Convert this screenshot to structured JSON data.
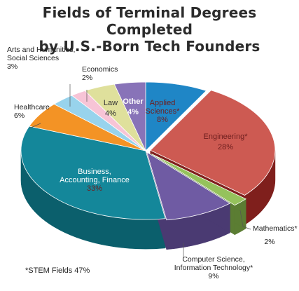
{
  "chart_data": {
    "type": "pie",
    "style": "3d-exploded",
    "title": [
      "Fields of Terminal Degrees Completed",
      "by U.S.-Born Tech Founders"
    ],
    "slices": [
      {
        "label_lines": [
          "Applied",
          "Sciences*"
        ],
        "pct_label": "8%",
        "value": 8,
        "color": "#1f86c6",
        "side": "#155e8c"
      },
      {
        "label_lines": [
          "Engineering*"
        ],
        "pct_label": "28%",
        "value": 28,
        "color": "#cd5a52",
        "side": "#7f1f1c"
      },
      {
        "label_lines": [
          "Mathematics*"
        ],
        "pct_label": "2%",
        "value": 2,
        "color": "#95c25c",
        "side": "#5b7d33"
      },
      {
        "label_lines": [
          "Computer Science,",
          "Information Technology*"
        ],
        "pct_label": "9%",
        "value": 9,
        "color": "#6f5ba3",
        "side": "#4a3a72"
      },
      {
        "label_lines": [
          "Business,",
          "Accounting, Finance"
        ],
        "pct_label": "33%",
        "value": 33,
        "color": "#14879a",
        "side": "#0b5f6c"
      },
      {
        "label_lines": [
          "Healthcare"
        ],
        "pct_label": "6%",
        "value": 6,
        "color": "#f39325",
        "side": "#b2660f"
      },
      {
        "label_lines": [
          "Arts and Humanities,",
          "Social Sciences"
        ],
        "pct_label": "3%",
        "value": 3,
        "color": "#98d3ec",
        "side": "#5f9db8"
      },
      {
        "label_lines": [
          "Economics"
        ],
        "pct_label": "2%",
        "value": 2,
        "color": "#f7c4d6",
        "side": "#c48da1"
      },
      {
        "label_lines": [
          "Law"
        ],
        "pct_label": "4%",
        "value": 4,
        "color": "#dfe09c",
        "side": "#a7a867"
      },
      {
        "label_lines": [
          "Other"
        ],
        "pct_label": "4%",
        "value": 4,
        "color": "#8873b8",
        "side": "#5e4d87"
      }
    ],
    "footnote": "*STEM Fields 47%"
  }
}
